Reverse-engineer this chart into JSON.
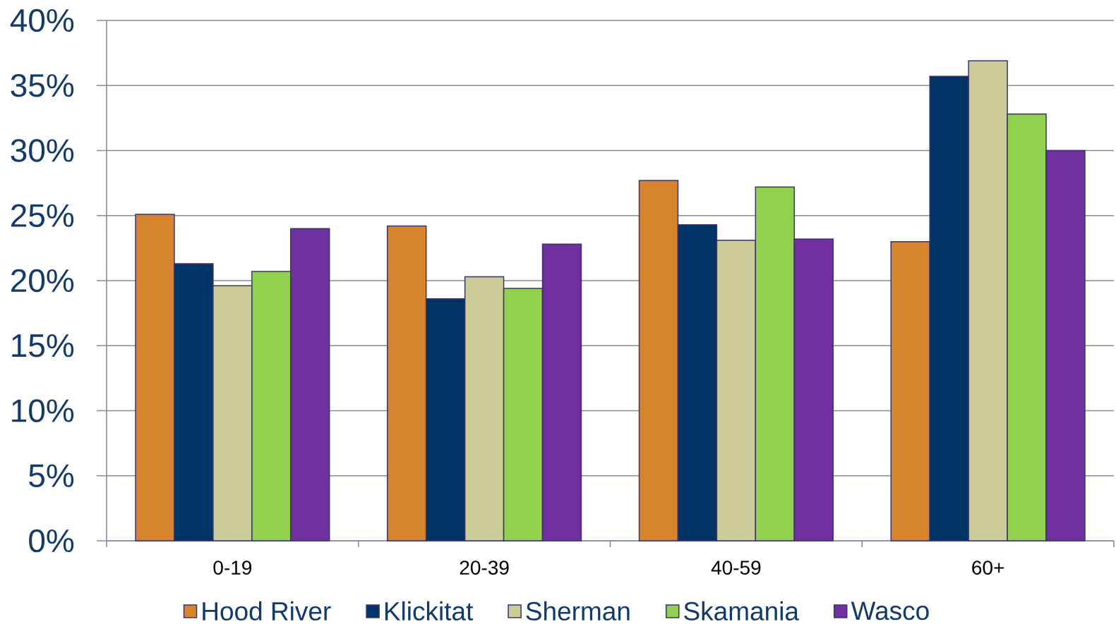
{
  "chart_data": {
    "type": "bar",
    "categories": [
      "0-19",
      "20-39",
      "40-59",
      "60+"
    ],
    "series": [
      {
        "name": "Hood River",
        "color": "#d6852e",
        "values": [
          25.1,
          24.2,
          27.7,
          23.0
        ]
      },
      {
        "name": "Klickitat",
        "color": "#003366",
        "values": [
          21.3,
          18.6,
          24.3,
          35.7
        ]
      },
      {
        "name": "Sherman",
        "color": "#cccc99",
        "values": [
          19.6,
          20.3,
          23.1,
          36.9
        ]
      },
      {
        "name": "Skamania",
        "color": "#92d050",
        "values": [
          20.7,
          19.4,
          27.2,
          32.8
        ]
      },
      {
        "name": "Wasco",
        "color": "#7030a0",
        "values": [
          24.0,
          22.8,
          23.2,
          30.0
        ]
      }
    ],
    "ylim": [
      0,
      40
    ],
    "yticks": [
      {
        "value": 0,
        "label": "0%"
      },
      {
        "value": 5,
        "label": "5%"
      },
      {
        "value": 10,
        "label": "10%"
      },
      {
        "value": 15,
        "label": "15%"
      },
      {
        "value": 20,
        "label": "20%"
      },
      {
        "value": 25,
        "label": "25%"
      },
      {
        "value": 30,
        "label": "30%"
      },
      {
        "value": 35,
        "label": "35%"
      },
      {
        "value": 40,
        "label": "40%"
      }
    ],
    "grid": "y",
    "legend": "bottom"
  }
}
